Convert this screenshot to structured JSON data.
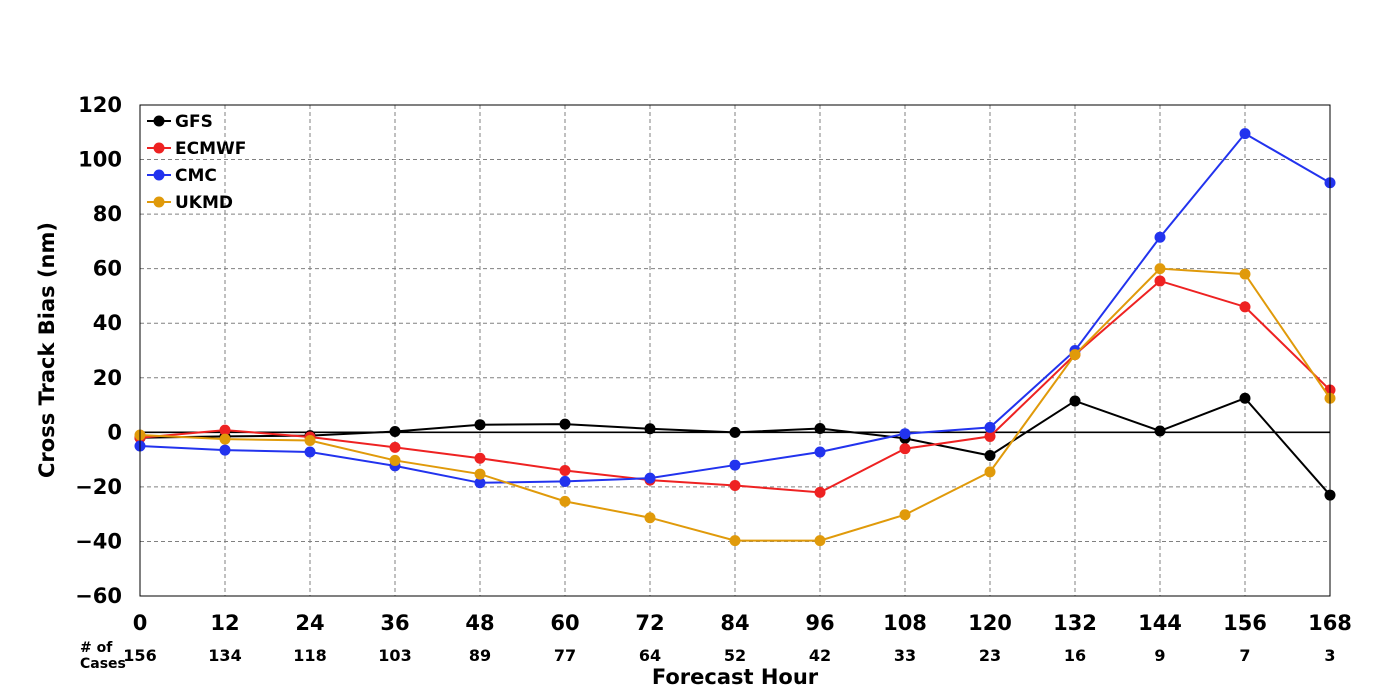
{
  "chart_data": {
    "type": "line",
    "title": "",
    "xlabel": "Forecast Hour",
    "ylabel": "Cross Track Bias (nm)",
    "x": [
      0,
      12,
      24,
      36,
      48,
      60,
      72,
      84,
      96,
      108,
      120,
      132,
      144,
      156,
      168
    ],
    "xlim": [
      0,
      168
    ],
    "ylim": [
      -60,
      120
    ],
    "x_ticks": [
      "0",
      "12",
      "24",
      "36",
      "48",
      "60",
      "72",
      "84",
      "96",
      "108",
      "120",
      "132",
      "144",
      "156",
      "168"
    ],
    "y_ticks": [
      "120",
      "100",
      "80",
      "60",
      "40",
      "20",
      "0",
      "−20",
      "−40",
      "−60"
    ],
    "grid": true,
    "legend_position": "top-left",
    "cases_label": "# of\nCases",
    "cases": [
      "156",
      "134",
      "118",
      "103",
      "89",
      "77",
      "64",
      "52",
      "42",
      "33",
      "23",
      "16",
      "9",
      "7",
      "3"
    ],
    "series": [
      {
        "name": "GFS",
        "color": "#000000",
        "values": [
          -2,
          -1.5,
          -1.2,
          0.3,
          2.8,
          3,
          1.3,
          0,
          1.4,
          -2.2,
          -8.5,
          11.5,
          0.5,
          12.5,
          -23
        ]
      },
      {
        "name": "ECMWF",
        "color": "#ee2222",
        "values": [
          -2,
          0.8,
          -1.7,
          -5.5,
          -9.5,
          -14,
          -17.5,
          -19.5,
          -22,
          -6,
          -1.5,
          28.5,
          55.5,
          46,
          15.5
        ]
      },
      {
        "name": "CMC",
        "color": "#2233ee",
        "values": [
          -5,
          -6.5,
          -7.2,
          -12.3,
          -18.5,
          -18,
          -16.8,
          -12,
          -7.2,
          -0.5,
          1.8,
          30,
          71.5,
          109.5,
          91.5
        ]
      },
      {
        "name": "UKMD",
        "color": "#e09a0a",
        "values": [
          -1,
          -2.5,
          -3,
          -10.3,
          -15.3,
          -25.3,
          -31.3,
          -39.7,
          -39.7,
          -30.2,
          -14.5,
          28.5,
          60,
          58,
          12.5
        ]
      }
    ]
  }
}
